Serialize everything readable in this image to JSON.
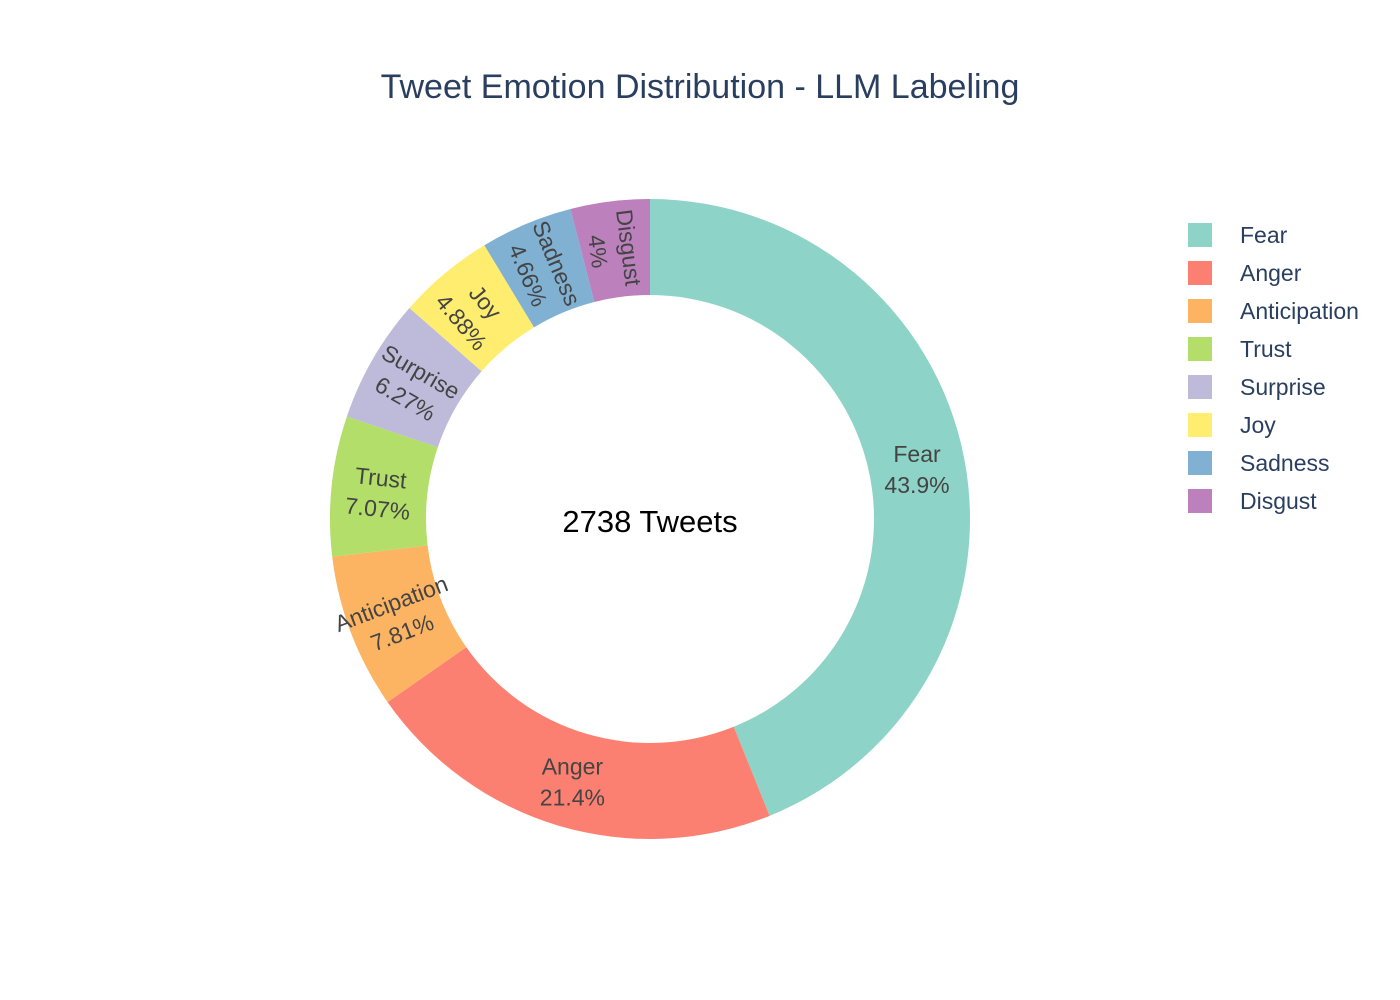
{
  "chart_data": {
    "type": "pie",
    "title": "Tweet Emotion Distribution - LLM Labeling",
    "center_text": "2738 Tweets",
    "legend_position": "top-right",
    "slices": [
      {
        "label": "Fear",
        "value": 43.9,
        "text": "43.9%",
        "color": "#8dd3c7"
      },
      {
        "label": "Anger",
        "value": 21.4,
        "text": "21.4%",
        "color": "#fb8072"
      },
      {
        "label": "Anticipation",
        "value": 7.81,
        "text": "7.81%",
        "color": "#fdb462"
      },
      {
        "label": "Trust",
        "value": 7.07,
        "text": "7.07%",
        "color": "#b3de69"
      },
      {
        "label": "Surprise",
        "value": 6.27,
        "text": "6.27%",
        "color": "#bebada"
      },
      {
        "label": "Joy",
        "value": 4.88,
        "text": "4.88%",
        "color": "#ffed6f"
      },
      {
        "label": "Sadness",
        "value": 4.66,
        "text": "4.66%",
        "color": "#80b1d3"
      },
      {
        "label": "Disgust",
        "value": 4.0,
        "text": "4%",
        "color": "#bc80bd"
      }
    ]
  }
}
